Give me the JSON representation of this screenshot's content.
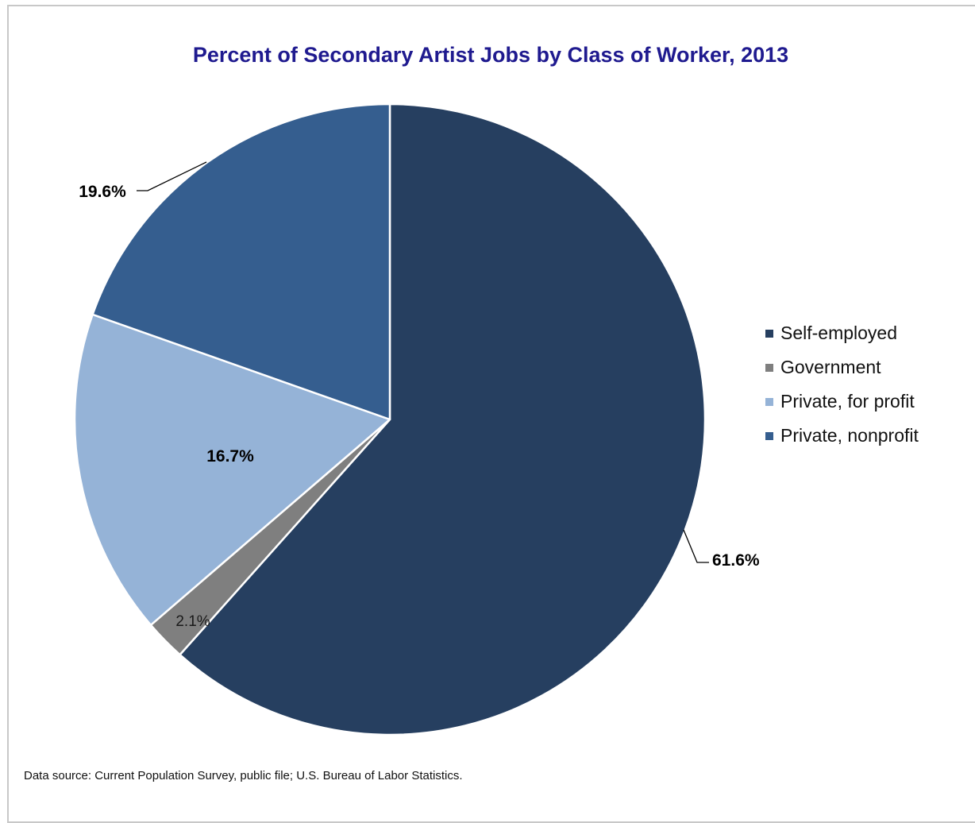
{
  "chart_data": {
    "type": "pie",
    "title": "Percent of Secondary Artist Jobs by Class of Worker, 2013",
    "slices": [
      {
        "name": "Self-employed",
        "value": 61.6,
        "label": "61.6%",
        "color": "#263f60"
      },
      {
        "name": "Government",
        "value": 2.1,
        "label": "2.1%",
        "color": "#7f7f7f"
      },
      {
        "name": "Private, for profit",
        "value": 16.7,
        "label": "16.7%",
        "color": "#95b3d7"
      },
      {
        "name": "Private, nonprofit",
        "value": 19.6,
        "label": "19.6%",
        "color": "#355e8f"
      }
    ],
    "start_angle_deg": 0,
    "direction": "clockwise",
    "legend": {
      "placement": "right",
      "entries": [
        "Self-employed",
        "Government",
        "Private, for profit",
        "Private, nonprofit"
      ]
    }
  },
  "source_note": "Data source: Current Population Survey, public file; U.S. Bureau of Labor Statistics."
}
